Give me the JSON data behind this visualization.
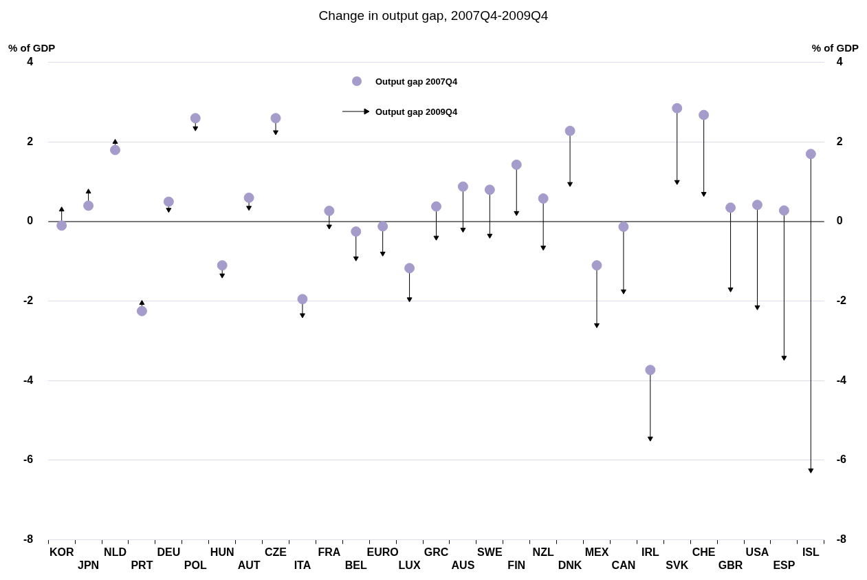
{
  "chart_data": {
    "type": "scatter",
    "title": "Change in output gap, 2007Q4-2009Q4",
    "ylabel": "% of GDP",
    "y2label": "% of GDP",
    "categories": [
      "KOR",
      "JPN",
      "NLD",
      "PRT",
      "DEU",
      "POL",
      "HUN",
      "AUT",
      "CZE",
      "ITA",
      "FRA",
      "BEL",
      "EURO",
      "LUX",
      "GRC",
      "AUS",
      "SWE",
      "FIN",
      "NZL",
      "DNK",
      "MEX",
      "CAN",
      "IRL",
      "SVK",
      "CHE",
      "GBR",
      "USA",
      "ESP",
      "ISL"
    ],
    "series": [
      {
        "name": "Output gap 2007Q4",
        "type": "scatter",
        "color": "#a69ccb",
        "values": [
          -0.1,
          0.4,
          1.8,
          -2.25,
          0.5,
          2.6,
          -1.1,
          0.6,
          2.6,
          -1.95,
          0.27,
          -0.25,
          -0.12,
          -1.17,
          0.38,
          0.88,
          0.8,
          1.43,
          0.58,
          2.28,
          -1.1,
          -0.13,
          -3.73,
          2.85,
          2.68,
          0.35,
          0.42,
          0.28,
          1.7
        ]
      },
      {
        "name": "Output gap 2009Q4",
        "type": "scatter",
        "marker": "triangle",
        "color": "#000000",
        "values": [
          0.3,
          0.75,
          2.0,
          -2.05,
          0.3,
          2.35,
          -1.35,
          0.35,
          2.25,
          -2.35,
          -0.12,
          -0.92,
          -0.8,
          -1.95,
          -0.4,
          -0.2,
          -0.35,
          0.22,
          -0.65,
          0.95,
          -2.6,
          -1.75,
          -5.45,
          1.0,
          0.7,
          -1.7,
          -2.15,
          -3.42,
          -6.25
        ]
      }
    ],
    "ylim": [
      -8,
      4
    ],
    "yticks": [
      -8,
      -6,
      -4,
      -2,
      0,
      2,
      4
    ],
    "y2lim": [
      -8,
      4
    ],
    "y2ticks": [
      -8,
      -6,
      -4,
      -2,
      0,
      2,
      4
    ],
    "ref_lines": [
      {
        "axis": "y",
        "value": 0,
        "color": "#000000"
      }
    ],
    "grid": "y",
    "legend": "top",
    "marker": "circle"
  }
}
